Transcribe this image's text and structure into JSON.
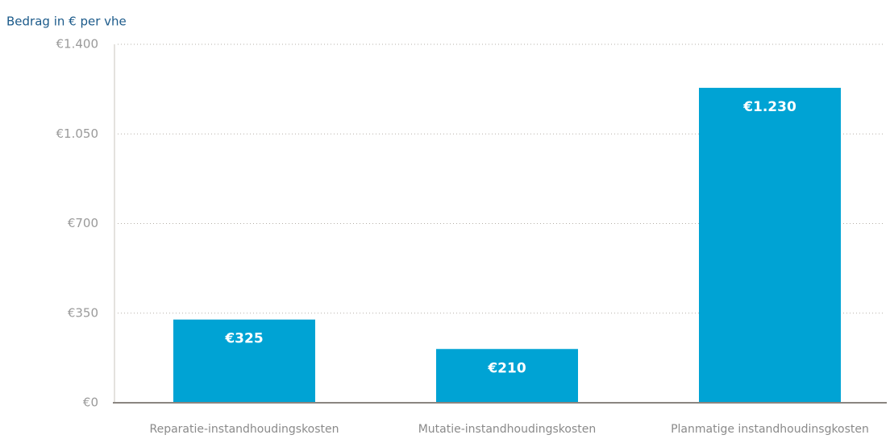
{
  "chart_data": {
    "type": "bar",
    "y_axis_label": "Bedrag in € per vhe",
    "categories": [
      "Reparatie-instandhoudingskosten",
      "Mutatie-instandhoudingskosten",
      "Planmatige instandhoudinsgkosten"
    ],
    "values": [
      325,
      210,
      1230
    ],
    "value_labels": [
      "€325",
      "€210",
      "€1.230"
    ],
    "color": "#00a3d4",
    "ylim": [
      0,
      1400
    ],
    "yticks": [
      {
        "value": 0,
        "label": "€0"
      },
      {
        "value": 350,
        "label": "€350"
      },
      {
        "value": 700,
        "label": "€700"
      },
      {
        "value": 1050,
        "label": "€1.050"
      },
      {
        "value": 1400,
        "label": "€1.400"
      }
    ],
    "grid": true
  }
}
